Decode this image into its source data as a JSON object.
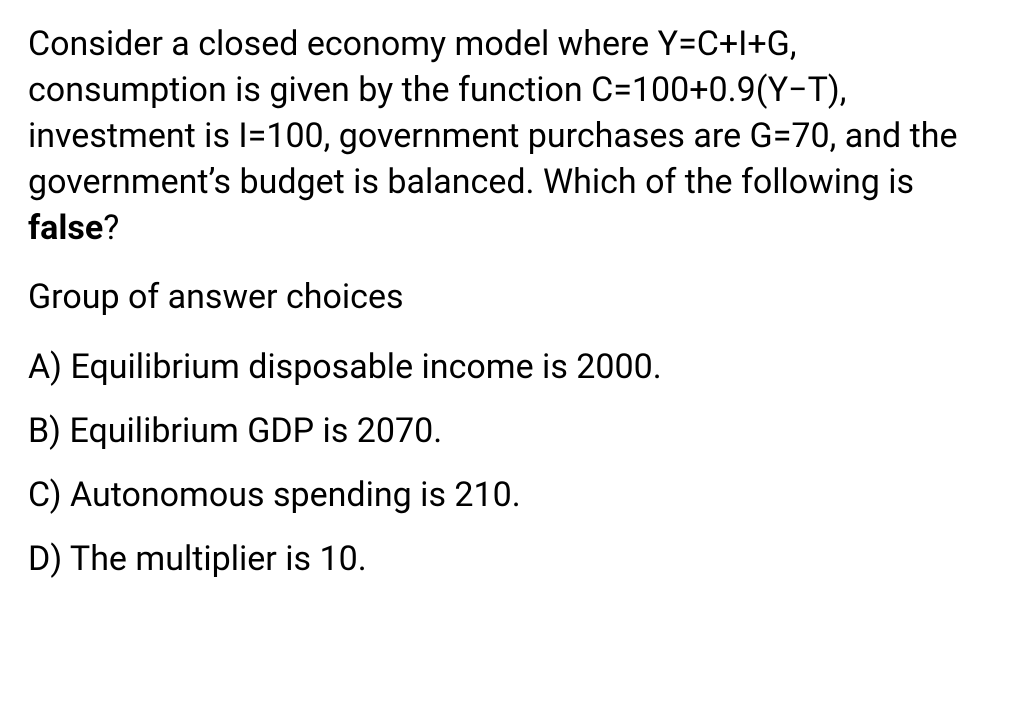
{
  "text_color": "#000000",
  "background_color": "#ffffff",
  "font_size_pt": 26,
  "question": {
    "stem_pre": "Consider a closed economy model where Y=C+I+G, consumption is given by the function C=100+0.9(Y−T), investment is I=100, government purchases are G=70, and the government’s budget is balanced. Which of the following is ",
    "stem_bold": "false",
    "stem_post": "?"
  },
  "group_label": "Group of answer choices",
  "choices": {
    "a": "A) Equilibrium disposable income is 2000.",
    "b": "B) Equilibrium GDP is 2070.",
    "c": "C) Autonomous spending is 210.",
    "d": "D) The multiplier is 10."
  }
}
